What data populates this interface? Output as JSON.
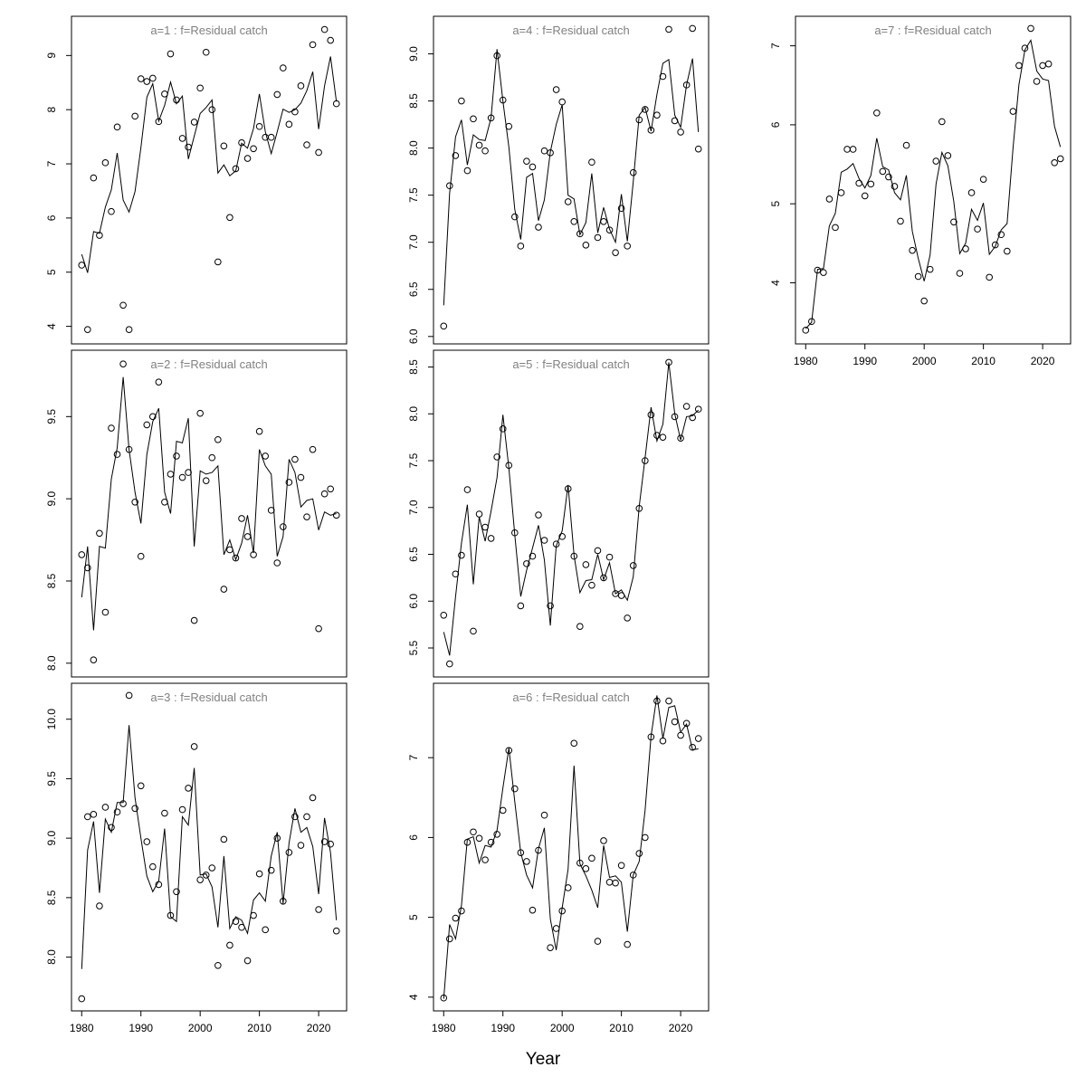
{
  "xlabel": "Year",
  "colors": {
    "points": "#000000",
    "line": "#000000",
    "title": "#808080",
    "frame": "#000000"
  },
  "chart_data": [
    {
      "type": "scatter",
      "title": "a=1  :  f=Residual catch",
      "xlim": [
        1980,
        2023
      ],
      "ylim": [
        3.9,
        9.5
      ],
      "x_ticks": [
        1980,
        1990,
        2000,
        2010,
        2020
      ],
      "y_ticks": [
        4,
        5,
        6,
        7,
        8,
        9
      ],
      "show_x_axis": false,
      "x": [
        1980,
        1981,
        1982,
        1983,
        1984,
        1985,
        1986,
        1987,
        1988,
        1989,
        1990,
        1991,
        1992,
        1993,
        1994,
        1995,
        1996,
        1997,
        1998,
        1999,
        2000,
        2001,
        2002,
        2003,
        2004,
        2005,
        2006,
        2007,
        2008,
        2009,
        2010,
        2011,
        2012,
        2013,
        2014,
        2015,
        2016,
        2017,
        2018,
        2019,
        2020,
        2021,
        2022,
        2023
      ],
      "observed": [
        5.13,
        3.94,
        6.74,
        5.68,
        7.02,
        6.12,
        7.68,
        4.39,
        3.94,
        7.88,
        8.57,
        8.52,
        8.58,
        7.78,
        8.29,
        9.03,
        8.18,
        7.47,
        7.31,
        7.77,
        8.4,
        9.06,
        8.0,
        5.19,
        7.33,
        6.01,
        6.91,
        7.39,
        7.1,
        7.28,
        7.69,
        7.49,
        7.49,
        8.28,
        8.77,
        7.73,
        7.96,
        8.44,
        7.35,
        9.2,
        7.21,
        9.48,
        9.28,
        8.11
      ],
      "fitted": [
        5.33,
        4.99,
        5.75,
        5.72,
        6.2,
        6.52,
        7.2,
        6.33,
        6.11,
        6.49,
        7.3,
        8.23,
        8.48,
        7.79,
        8.08,
        8.51,
        8.11,
        8.25,
        7.09,
        7.51,
        7.93,
        8.04,
        8.18,
        6.83,
        6.98,
        6.78,
        6.87,
        7.38,
        7.29,
        7.65,
        8.29,
        7.59,
        7.19,
        7.59,
        8.01,
        7.95,
        8.0,
        8.12,
        8.35,
        8.7,
        7.64,
        8.44,
        8.98,
        8.15
      ]
    },
    {
      "type": "scatter",
      "title": "a=2  :  f=Residual catch",
      "xlim": [
        1980,
        2023
      ],
      "ylim": [
        7.99,
        9.83
      ],
      "x_ticks": [
        1980,
        1990,
        2000,
        2010,
        2020
      ],
      "y_ticks": [
        8.0,
        8.5,
        9.0,
        9.5
      ],
      "y_tick_labels": [
        "8.0",
        "8.5",
        "9.0",
        "9.5"
      ],
      "show_x_axis": false,
      "x": [
        1980,
        1981,
        1982,
        1983,
        1984,
        1985,
        1986,
        1987,
        1988,
        1989,
        1990,
        1991,
        1992,
        1993,
        1994,
        1995,
        1996,
        1997,
        1998,
        1999,
        2000,
        2001,
        2002,
        2003,
        2004,
        2005,
        2006,
        2007,
        2008,
        2009,
        2010,
        2011,
        2012,
        2013,
        2014,
        2015,
        2016,
        2017,
        2018,
        2019,
        2020,
        2021,
        2022,
        2023
      ],
      "observed": [
        8.66,
        8.58,
        8.02,
        8.79,
        8.31,
        9.43,
        9.27,
        9.82,
        9.3,
        8.98,
        8.65,
        9.45,
        9.5,
        9.71,
        8.98,
        9.15,
        9.26,
        9.13,
        9.16,
        8.26,
        9.52,
        9.11,
        9.25,
        9.36,
        8.45,
        8.69,
        8.64,
        8.88,
        8.77,
        8.66,
        9.41,
        9.26,
        8.93,
        8.61,
        8.83,
        9.1,
        9.24,
        9.13,
        8.89,
        9.3,
        8.21,
        9.03,
        9.06,
        8.9
      ],
      "fitted": [
        8.4,
        8.71,
        8.2,
        8.71,
        8.7,
        9.12,
        9.31,
        9.74,
        9.3,
        9.04,
        8.85,
        9.27,
        9.47,
        9.55,
        9.04,
        8.91,
        9.35,
        9.34,
        9.49,
        8.71,
        9.17,
        9.15,
        9.16,
        9.2,
        8.66,
        8.75,
        8.63,
        8.73,
        8.9,
        8.67,
        9.3,
        9.2,
        9.15,
        8.65,
        8.77,
        9.24,
        9.16,
        8.95,
        8.99,
        9.0,
        8.81,
        8.92,
        8.9,
        8.91
      ]
    },
    {
      "type": "scatter",
      "title": "a=3  :  f=Residual catch",
      "xlim": [
        1980,
        2023
      ],
      "ylim": [
        7.65,
        10.2
      ],
      "x_ticks": [
        1980,
        1990,
        2000,
        2010,
        2020
      ],
      "x_tick_labels": [
        "1980",
        "1990",
        "2000",
        "2010",
        "2020"
      ],
      "y_ticks": [
        8.0,
        8.5,
        9.0,
        9.5,
        10.0
      ],
      "y_tick_labels": [
        "8.0",
        "8.5",
        "9.0",
        "9.5",
        "10.0"
      ],
      "show_x_axis": true,
      "x": [
        1980,
        1981,
        1982,
        1983,
        1984,
        1985,
        1986,
        1987,
        1988,
        1989,
        1990,
        1991,
        1992,
        1993,
        1994,
        1995,
        1996,
        1997,
        1998,
        1999,
        2000,
        2001,
        2002,
        2003,
        2004,
        2005,
        2006,
        2007,
        2008,
        2009,
        2010,
        2011,
        2012,
        2013,
        2014,
        2015,
        2016,
        2017,
        2018,
        2019,
        2020,
        2021,
        2022,
        2023
      ],
      "observed": [
        7.65,
        9.18,
        9.2,
        8.43,
        9.26,
        9.09,
        9.22,
        9.29,
        10.2,
        9.25,
        9.44,
        8.97,
        8.76,
        8.61,
        9.21,
        8.35,
        8.55,
        9.24,
        9.42,
        9.77,
        8.65,
        8.69,
        8.75,
        7.93,
        8.99,
        8.1,
        8.3,
        8.25,
        7.97,
        8.35,
        8.7,
        8.23,
        8.73,
        9.0,
        8.47,
        8.88,
        9.18,
        8.94,
        9.18,
        9.34,
        8.4,
        8.97,
        8.95,
        8.22
      ],
      "fitted": [
        7.9,
        8.9,
        9.14,
        8.54,
        9.16,
        9.05,
        9.3,
        9.3,
        9.95,
        9.34,
        9.0,
        8.68,
        8.55,
        8.64,
        9.08,
        8.34,
        8.3,
        9.18,
        9.11,
        9.59,
        8.69,
        8.7,
        8.59,
        8.25,
        8.85,
        8.24,
        8.34,
        8.31,
        8.2,
        8.48,
        8.54,
        8.47,
        8.85,
        9.05,
        8.45,
        8.96,
        9.25,
        9.05,
        9.09,
        8.93,
        8.53,
        9.17,
        8.88,
        8.31
      ]
    },
    {
      "type": "scatter",
      "title": "a=4  :  f=Residual catch",
      "xlim": [
        1980,
        2023
      ],
      "ylim": [
        6.05,
        9.27
      ],
      "x_ticks": [
        1980,
        1990,
        2000,
        2010,
        2020
      ],
      "y_ticks": [
        6.0,
        6.5,
        7.0,
        7.5,
        8.0,
        8.5,
        9.0
      ],
      "y_tick_labels": [
        "6.0",
        "6.5",
        "7.0",
        "7.5",
        "8.0",
        "8.5",
        "9.0"
      ],
      "show_x_axis": false,
      "x": [
        1980,
        1981,
        1982,
        1983,
        1984,
        1985,
        1986,
        1987,
        1988,
        1989,
        1990,
        1991,
        1992,
        1993,
        1994,
        1995,
        1996,
        1997,
        1998,
        1999,
        2000,
        2001,
        2002,
        2003,
        2004,
        2005,
        2006,
        2007,
        2008,
        2009,
        2010,
        2011,
        2012,
        2013,
        2014,
        2015,
        2016,
        2017,
        2018,
        2019,
        2020,
        2021,
        2022,
        2023
      ],
      "observed": [
        6.11,
        7.6,
        7.92,
        8.5,
        7.76,
        8.31,
        8.03,
        7.97,
        8.32,
        8.98,
        8.51,
        8.23,
        7.27,
        6.96,
        7.86,
        7.8,
        7.16,
        7.97,
        7.95,
        8.62,
        8.49,
        7.43,
        7.22,
        7.09,
        6.97,
        7.85,
        7.05,
        7.22,
        7.13,
        6.89,
        7.36,
        6.96,
        7.74,
        8.3,
        8.41,
        8.19,
        8.35,
        8.76,
        9.26,
        8.29,
        8.17,
        8.67,
        9.27,
        7.99
      ],
      "fitted": [
        6.33,
        7.52,
        8.12,
        8.3,
        7.82,
        8.14,
        8.09,
        8.08,
        8.32,
        9.05,
        8.5,
        8.01,
        7.35,
        7.03,
        7.69,
        7.73,
        7.23,
        7.45,
        7.96,
        8.25,
        8.46,
        7.5,
        7.46,
        7.08,
        7.21,
        7.73,
        7.1,
        7.37,
        7.14,
        7.0,
        7.51,
        7.01,
        7.64,
        8.35,
        8.43,
        8.18,
        8.57,
        8.9,
        8.94,
        8.35,
        8.22,
        8.67,
        8.95,
        8.17
      ]
    },
    {
      "type": "scatter",
      "title": "a=5  :  f=Residual catch",
      "xlim": [
        1980,
        2023
      ],
      "ylim": [
        5.32,
        8.55
      ],
      "x_ticks": [
        1980,
        1990,
        2000,
        2010,
        2020
      ],
      "y_ticks": [
        5.5,
        6.0,
        6.5,
        7.0,
        7.5,
        8.0,
        8.5
      ],
      "y_tick_labels": [
        "5.5",
        "6.0",
        "6.5",
        "7.0",
        "7.5",
        "8.0",
        "8.5"
      ],
      "show_x_axis": false,
      "x": [
        1980,
        1981,
        1982,
        1983,
        1984,
        1985,
        1986,
        1987,
        1988,
        1989,
        1990,
        1991,
        1992,
        1993,
        1994,
        1995,
        1996,
        1997,
        1998,
        1999,
        2000,
        2001,
        2002,
        2003,
        2004,
        2005,
        2006,
        2007,
        2008,
        2009,
        2010,
        2011,
        2012,
        2013,
        2014,
        2015,
        2016,
        2017,
        2018,
        2019,
        2020,
        2021,
        2022,
        2023
      ],
      "observed": [
        5.85,
        5.33,
        6.29,
        6.49,
        7.19,
        5.68,
        6.93,
        6.79,
        6.67,
        7.54,
        7.84,
        7.45,
        6.73,
        5.95,
        6.4,
        6.48,
        6.92,
        6.65,
        5.95,
        6.61,
        6.69,
        7.2,
        6.48,
        5.73,
        6.39,
        6.17,
        6.54,
        6.25,
        6.47,
        6.08,
        6.06,
        5.82,
        6.38,
        6.99,
        7.5,
        7.99,
        7.77,
        7.75,
        8.55,
        7.97,
        7.74,
        8.08,
        7.96,
        8.05
      ],
      "fitted": [
        5.67,
        5.42,
        6.05,
        6.62,
        7.03,
        6.18,
        6.9,
        6.64,
        6.96,
        7.32,
        7.99,
        7.42,
        6.71,
        6.05,
        6.33,
        6.57,
        6.81,
        6.44,
        5.74,
        6.59,
        6.75,
        7.24,
        6.49,
        6.09,
        6.22,
        6.23,
        6.5,
        6.23,
        6.41,
        6.08,
        6.12,
        6.01,
        6.26,
        7.01,
        7.53,
        8.07,
        7.71,
        7.89,
        8.55,
        8.0,
        7.72,
        7.97,
        7.98,
        8.04
      ]
    },
    {
      "type": "scatter",
      "title": "a=6  :  f=Residual catch",
      "xlim": [
        1980,
        2023
      ],
      "ylim": [
        3.98,
        7.78
      ],
      "x_ticks": [
        1980,
        1990,
        2000,
        2010,
        2020
      ],
      "x_tick_labels": [
        "1980",
        "1990",
        "2000",
        "2010",
        "2020"
      ],
      "y_ticks": [
        4,
        5,
        6,
        7
      ],
      "show_x_axis": true,
      "x": [
        1980,
        1981,
        1982,
        1983,
        1984,
        1985,
        1986,
        1987,
        1988,
        1989,
        1990,
        1991,
        1992,
        1993,
        1994,
        1995,
        1996,
        1997,
        1998,
        1999,
        2000,
        2001,
        2002,
        2003,
        2004,
        2005,
        2006,
        2007,
        2008,
        2009,
        2010,
        2011,
        2012,
        2013,
        2014,
        2015,
        2016,
        2017,
        2018,
        2019,
        2020,
        2021,
        2022,
        2023
      ],
      "observed": [
        3.99,
        4.73,
        4.99,
        5.08,
        5.94,
        6.07,
        5.99,
        5.72,
        5.94,
        6.04,
        6.34,
        7.09,
        6.61,
        5.81,
        5.7,
        5.09,
        5.84,
        6.28,
        4.62,
        4.86,
        5.08,
        5.37,
        7.18,
        5.68,
        5.61,
        5.74,
        4.7,
        5.96,
        5.44,
        5.43,
        5.65,
        4.66,
        5.53,
        5.8,
        6.0,
        7.26,
        7.71,
        7.21,
        7.71,
        7.45,
        7.28,
        7.43,
        7.13,
        7.24
      ],
      "fitted": [
        3.98,
        4.91,
        4.73,
        5.15,
        5.98,
        6.01,
        5.68,
        5.9,
        5.88,
        6.09,
        6.62,
        7.12,
        6.45,
        5.81,
        5.53,
        5.37,
        5.86,
        6.12,
        4.98,
        4.59,
        5.12,
        5.6,
        6.9,
        5.67,
        5.52,
        5.34,
        5.12,
        5.9,
        5.5,
        5.52,
        5.44,
        4.82,
        5.53,
        5.7,
        6.34,
        7.27,
        7.78,
        7.24,
        7.63,
        7.65,
        7.32,
        7.42,
        7.1,
        7.11
      ]
    },
    {
      "type": "scatter",
      "title": "a=7  :  f=Residual catch",
      "xlim": [
        1980,
        2023
      ],
      "ylim": [
        3.38,
        7.22
      ],
      "x_ticks": [
        1980,
        1990,
        2000,
        2010,
        2020
      ],
      "x_tick_labels": [
        "1980",
        "1990",
        "2000",
        "2010",
        "2020"
      ],
      "y_ticks": [
        4,
        5,
        6,
        7
      ],
      "show_x_axis": true,
      "x": [
        1980,
        1981,
        1982,
        1983,
        1984,
        1985,
        1986,
        1987,
        1988,
        1989,
        1990,
        1991,
        1992,
        1993,
        1994,
        1995,
        1996,
        1997,
        1998,
        1999,
        2000,
        2001,
        2002,
        2003,
        2004,
        2005,
        2006,
        2007,
        2008,
        2009,
        2010,
        2011,
        2012,
        2013,
        2014,
        2015,
        2016,
        2017,
        2018,
        2019,
        2020,
        2021,
        2022,
        2023
      ],
      "observed": [
        3.4,
        3.51,
        4.16,
        4.13,
        5.06,
        4.7,
        5.14,
        5.69,
        5.69,
        5.26,
        5.1,
        5.25,
        6.15,
        5.41,
        5.34,
        5.22,
        4.78,
        5.74,
        4.41,
        4.08,
        3.77,
        4.17,
        5.54,
        6.04,
        5.61,
        4.77,
        4.12,
        4.43,
        5.14,
        4.68,
        5.31,
        4.07,
        4.48,
        4.61,
        4.4,
        6.17,
        6.75,
        6.97,
        7.22,
        6.55,
        6.75,
        6.77,
        5.52,
        5.57
      ],
      "fitted": [
        3.42,
        3.5,
        4.17,
        4.18,
        4.72,
        4.88,
        5.4,
        5.44,
        5.51,
        5.32,
        5.2,
        5.36,
        5.83,
        5.47,
        5.43,
        5.14,
        5.05,
        5.36,
        4.65,
        4.31,
        4.02,
        4.35,
        5.25,
        5.65,
        5.48,
        5.03,
        4.37,
        4.5,
        4.93,
        4.79,
        5.01,
        4.36,
        4.46,
        4.67,
        4.75,
        5.71,
        6.51,
        6.95,
        7.07,
        6.68,
        6.58,
        6.56,
        5.98,
        5.72
      ]
    }
  ]
}
